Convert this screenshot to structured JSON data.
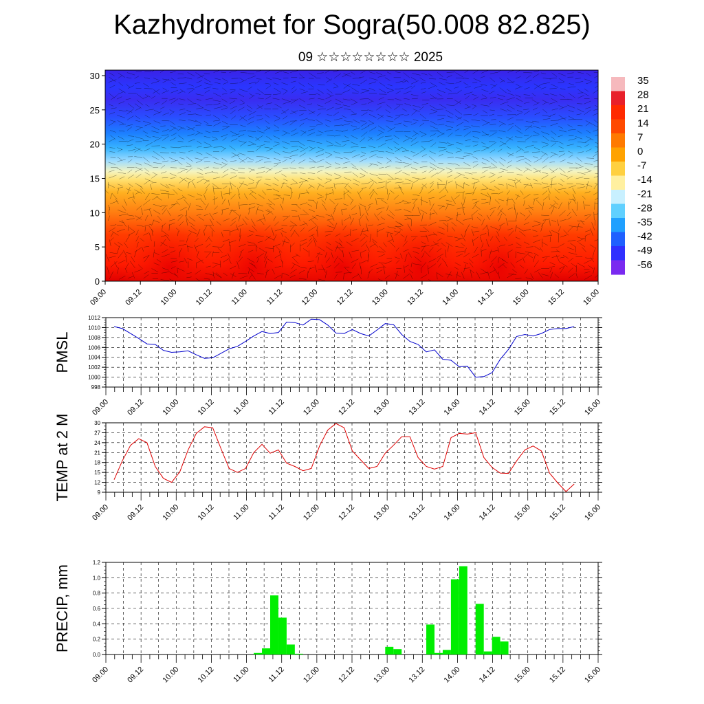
{
  "title": "Kazhydromet for Sogra(50.008 82.825)",
  "subtitle": "09 ☆☆☆☆☆☆☆☆ 2025",
  "chart_data": [
    {
      "type": "heatmap",
      "name": "vertical-cross-section",
      "x_ticks": [
        "09.00",
        "09.12",
        "10.00",
        "10.12",
        "11.00",
        "11.12",
        "12.00",
        "12.12",
        "13.00",
        "13.12",
        "14.00",
        "14.12",
        "15.00",
        "15.12",
        "16.00"
      ],
      "y_ticks": [
        0,
        5,
        10,
        15,
        20,
        25,
        30
      ],
      "ylim": [
        0,
        30.8
      ],
      "colorbar_labels": [
        "35",
        "28",
        "21",
        "14",
        "7",
        "0",
        "-7",
        "-14",
        "-21",
        "-28",
        "-35",
        "-42",
        "-49",
        "-56"
      ],
      "colorbar_colors": [
        "#f6b9bd",
        "#e8202a",
        "#ff2a00",
        "#ff4a00",
        "#ff7a00",
        "#ffa200",
        "#ffd040",
        "#fff0a0",
        "#c8f0ff",
        "#60d0ff",
        "#20a0ff",
        "#2060ff",
        "#3030ff",
        "#7a2af0"
      ]
    },
    {
      "type": "line",
      "name": "pmsl",
      "ylabel": "PMSL",
      "x_ticks": [
        "09.00",
        "09.12",
        "10.00",
        "10.12",
        "11.00",
        "11.12",
        "12.00",
        "12.12",
        "13.00",
        "13.12",
        "14.00",
        "14.12",
        "15.00",
        "15.12",
        "16.00"
      ],
      "y_ticks": [
        998,
        1000,
        1002,
        1004,
        1006,
        1008,
        1010,
        1012
      ],
      "ylim": [
        998,
        1012
      ],
      "color": "#0000cc",
      "values": [
        1010.2,
        1009.8,
        1008.8,
        1007.8,
        1006.7,
        1006.6,
        1005.4,
        1005.0,
        1005.1,
        1005.3,
        1004.5,
        1003.8,
        1003.9,
        1004.8,
        1005.7,
        1006.2,
        1007.2,
        1008.3,
        1009.2,
        1008.8,
        1009.0,
        1011.1,
        1011.0,
        1010.5,
        1011.7,
        1011.6,
        1010.5,
        1008.9,
        1008.8,
        1009.6,
        1008.8,
        1008.3,
        1009.5,
        1010.8,
        1010.6,
        1008.6,
        1007.2,
        1006.6,
        1005.1,
        1005.5,
        1003.6,
        1003.4,
        1002.1,
        1002.2,
        1000.0,
        1000.1,
        1000.9,
        1003.6,
        1005.6,
        1008.2,
        1008.6,
        1008.3,
        1008.8,
        1009.6,
        1009.8,
        1009.8,
        1010.2
      ]
    },
    {
      "type": "line",
      "name": "temp-2m",
      "ylabel": "TEMP at 2 M",
      "x_ticks": [
        "09.00",
        "09.12",
        "10.00",
        "10.12",
        "11.00",
        "11.12",
        "12.00",
        "12.12",
        "13.00",
        "13.12",
        "14.00",
        "14.12",
        "15.00",
        "15.12",
        "16.00"
      ],
      "y_ticks": [
        9,
        12,
        15,
        18,
        21,
        24,
        27,
        30
      ],
      "ylim": [
        9,
        30
      ],
      "color": "#dd0000",
      "values": [
        12.8,
        18.5,
        23.2,
        25.2,
        24.0,
        16.8,
        13.2,
        12.0,
        15.2,
        21.8,
        26.8,
        28.8,
        28.5,
        22.2,
        16.2,
        15.0,
        16.2,
        21.0,
        23.5,
        20.8,
        21.8,
        17.8,
        16.8,
        15.5,
        16.2,
        23.0,
        27.8,
        29.8,
        28.5,
        21.5,
        18.8,
        16.2,
        16.8,
        20.8,
        23.2,
        25.8,
        25.8,
        19.5,
        16.8,
        16.0,
        16.8,
        25.5,
        26.8,
        26.6,
        27.0,
        19.5,
        16.5,
        14.8,
        14.7,
        18.5,
        21.8,
        23.0,
        21.5,
        14.8,
        11.8,
        9.2,
        11.5
      ]
    },
    {
      "type": "bar",
      "name": "precip",
      "ylabel": "PRECIP, mm",
      "x_ticks": [
        "09.00",
        "09.12",
        "10.00",
        "10.12",
        "11.00",
        "11.12",
        "12.00",
        "12.12",
        "13.00",
        "13.12",
        "14.00",
        "14.12",
        "15.00",
        "15.12",
        "16.00"
      ],
      "y_ticks": [
        "0.0",
        "0.2",
        "0.4",
        "0.6",
        "0.8",
        "1.0",
        "1.2"
      ],
      "ylim": [
        0,
        1.2
      ],
      "color": "#00ee00",
      "values": [
        0,
        0,
        0,
        0,
        0,
        0,
        0,
        0,
        0,
        0,
        0,
        0,
        0,
        0,
        0,
        0,
        0,
        0,
        0.02,
        0.08,
        0.77,
        0.48,
        0.13,
        0.01,
        0,
        0,
        0,
        0,
        0,
        0,
        0,
        0,
        0,
        0,
        0.1,
        0.07,
        0,
        0,
        0,
        0.39,
        0.02,
        0.06,
        0.98,
        1.15,
        0,
        0.66,
        0.04,
        0.23,
        0.17,
        0,
        0,
        0,
        0,
        0,
        0,
        0,
        0
      ]
    }
  ]
}
